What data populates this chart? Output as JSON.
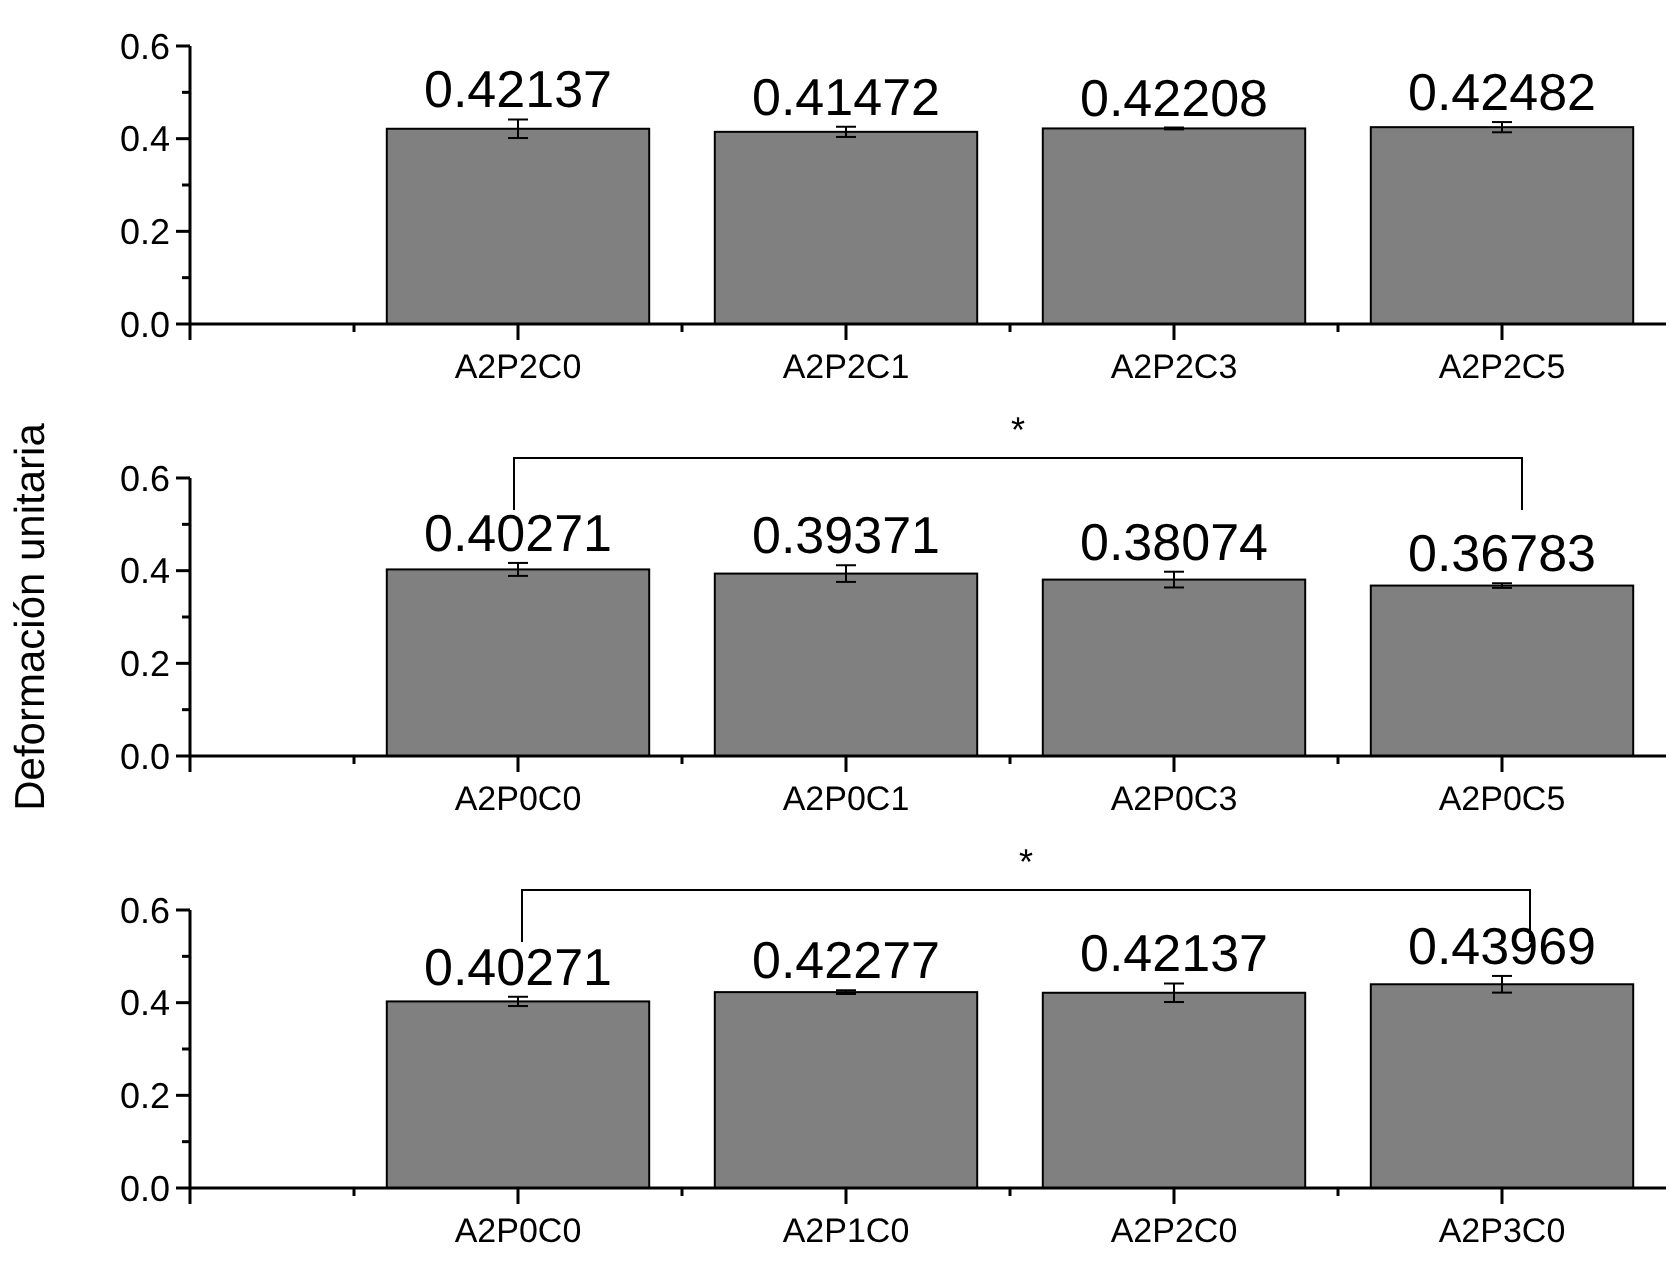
{
  "chart_data": [
    {
      "type": "bar",
      "categories": [
        null,
        "A2P2C0",
        "A2P2C1",
        "A2P2C3",
        "A2P2C5"
      ],
      "values": [
        null,
        0.42137,
        0.41472,
        0.42208,
        0.42482
      ],
      "errors": [
        null,
        0.02,
        0.011,
        0.002,
        0.011
      ],
      "color": "#808080",
      "data_labels": true,
      "ylim": [
        0,
        0.6
      ],
      "yticks": [
        {
          "value": 0,
          "label": "0.0"
        },
        {
          "value": 0.1,
          "label": null
        },
        {
          "value": 0.2,
          "label": "0.2"
        },
        {
          "value": 0.3,
          "label": null
        },
        {
          "value": 0.4,
          "label": "0.4"
        },
        {
          "value": 0.5,
          "label": null
        },
        {
          "value": 0.6,
          "label": "0.6"
        }
      ],
      "grid": false
    },
    {
      "type": "bar",
      "ylabel": "Deformación unitaria",
      "annotations": [
        "*"
      ],
      "categories": [
        null,
        "A2P0C0",
        "A2P0C1",
        "A2P0C3",
        "A2P0C5"
      ],
      "values": [
        null,
        0.40271,
        0.39371,
        0.38074,
        0.36783
      ],
      "errors": [
        null,
        0.014,
        0.018,
        0.017,
        0.005
      ],
      "color": "#808080",
      "data_labels": true,
      "ylim": [
        0,
        0.6
      ],
      "yticks": [
        {
          "value": 0,
          "label": "0.0"
        },
        {
          "value": 0.1,
          "label": null
        },
        {
          "value": 0.2,
          "label": "0.2"
        },
        {
          "value": 0.3,
          "label": null
        },
        {
          "value": 0.4,
          "label": "0.4"
        },
        {
          "value": 0.5,
          "label": null
        },
        {
          "value": 0.6,
          "label": "0.6"
        }
      ],
      "grid": false
    },
    {
      "type": "bar",
      "annotations": [
        "*"
      ],
      "categories": [
        null,
        "A2P0C0",
        "A2P1C0",
        "A2P2C0",
        "A2P3C0"
      ],
      "values": [
        null,
        0.40271,
        0.42277,
        0.42137,
        0.43969
      ],
      "errors": [
        null,
        0.01,
        0.004,
        0.02,
        0.018
      ],
      "color": "#808080",
      "data_labels": true,
      "ylim": [
        0,
        0.6
      ],
      "yticks": [
        {
          "value": 0,
          "label": "0.0"
        },
        {
          "value": 0.1,
          "label": null
        },
        {
          "value": 0.2,
          "label": "0.2"
        },
        {
          "value": 0.3,
          "label": null
        },
        {
          "value": 0.4,
          "label": "0.4"
        },
        {
          "value": 0.5,
          "label": null
        },
        {
          "value": 0.6,
          "label": "0.6"
        }
      ],
      "grid": false
    }
  ]
}
